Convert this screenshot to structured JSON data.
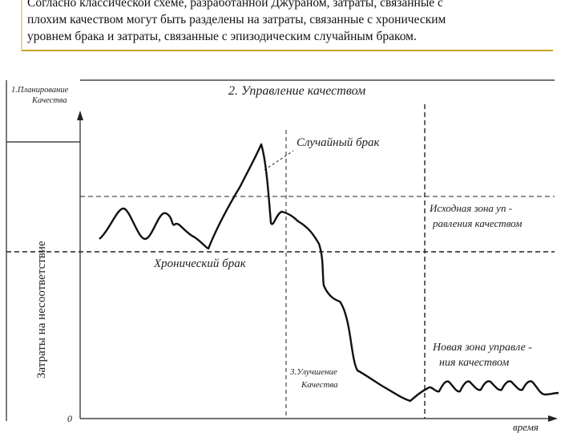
{
  "caption": {
    "line1": "Согласно классической схеме, разработанной Джураном, затраты, связанные с",
    "line2": "плохим качеством могут быть разделены на затраты, связанные с хроническим",
    "line3": "уровнем брака и затраты, связанные с эпизодическим случайным браком."
  },
  "diagram": {
    "section1": [
      "1.Планирование",
      "Качества"
    ],
    "section2": "2. Управление качеством",
    "section3": [
      "3.Улучшение",
      "Качества"
    ],
    "y_axis_label": "Затраты на несоответствие",
    "x_axis_label": "время",
    "origin": "0",
    "random_defect": "Случайный брак",
    "chronic_defect": "Хронический брак",
    "initial_zone": [
      "Исходная зона уп -",
      "равления качеством"
    ],
    "new_zone": [
      "Новая зона управле -",
      "ния качеством"
    ]
  }
}
